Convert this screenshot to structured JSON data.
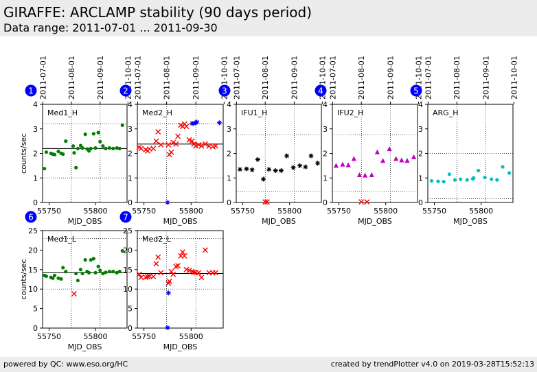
{
  "header": {
    "title": "GIRAFFE: ARCLAMP stability (90 days period)",
    "subtitle": "Data range: 2011-07-01 ... 2011-09-30"
  },
  "footer": {
    "left": "powered by QC: www.eso.org/HC",
    "right": "created by trendPlotter v4.0 on 2019-03-28T15:52:13"
  },
  "colors": {
    "green": "#007f00",
    "red": "#ff0000",
    "blue": "#0000ff",
    "black": "#000000",
    "magenta": "#bf00bf",
    "cyan": "#00bfbf",
    "badge": "#0000ff"
  },
  "chart_data": [
    {
      "type": "scatter",
      "badge": "1",
      "label": "Med1_H",
      "xlabel": "MJD_OBS",
      "ylabel": "counts/sec",
      "xlim": [
        55743,
        55834
      ],
      "ylim": [
        0,
        4
      ],
      "yticks": [
        0,
        1,
        2,
        3,
        4
      ],
      "xticks": [
        55750,
        55800
      ],
      "top_dates": [
        "2011-07-01",
        "2011-08-01",
        "2011-09-01",
        "2011-10-01"
      ],
      "hline": 2.2,
      "dotted_x": [
        55774,
        55805
      ],
      "dotted_y": [
        1,
        3.2
      ],
      "series": [
        {
          "color": "green",
          "marker": "dot",
          "x": [
            55745,
            55747,
            55752,
            55754,
            55756,
            55760,
            55763,
            55765,
            55768,
            55776,
            55777,
            55779,
            55781,
            55784,
            55786,
            55789,
            55791,
            55793,
            55795,
            55798,
            55800,
            55803,
            55805,
            55808,
            55811,
            55815,
            55819,
            55823,
            55826,
            55829
          ],
          "y": [
            1.38,
            2.05,
            2.0,
            1.97,
            1.95,
            2.08,
            2.0,
            1.97,
            2.5,
            2.3,
            2.02,
            1.42,
            2.2,
            2.32,
            2.22,
            2.78,
            2.18,
            2.1,
            2.2,
            2.8,
            2.22,
            2.85,
            2.48,
            2.3,
            2.2,
            2.22,
            2.2,
            2.22,
            2.2,
            3.15
          ]
        }
      ]
    },
    {
      "type": "scatter",
      "badge": "2",
      "label": "Med2_H",
      "xlabel": "MJD_OBS",
      "ylabel": "",
      "xlim": [
        55743,
        55834
      ],
      "ylim": [
        0,
        4
      ],
      "yticks": [
        0,
        1,
        2,
        3,
        4
      ],
      "xticks": [
        55750,
        55800
      ],
      "top_dates": [
        "2011-07-01",
        "2011-08-01",
        "2011-09-01",
        "2011-10-01"
      ],
      "hline": 2.38,
      "dotted_x": [
        55774,
        55805
      ],
      "dotted_y": [
        1,
        3.2
      ],
      "series": [
        {
          "color": "red",
          "marker": "x",
          "x": [
            55745,
            55747,
            55752,
            55754,
            55756,
            55760,
            55763,
            55765,
            55768,
            55776,
            55777,
            55779,
            55781,
            55784,
            55786,
            55789,
            55791,
            55793,
            55795,
            55798,
            55801,
            55803,
            55805,
            55808,
            55811,
            55815,
            55819,
            55823,
            55826
          ],
          "y": [
            2.25,
            2.2,
            2.15,
            2.1,
            2.18,
            2.2,
            2.5,
            2.88,
            2.35,
            2.35,
            1.95,
            2.05,
            2.45,
            2.38,
            2.7,
            3.15,
            3.1,
            3.2,
            3.1,
            2.55,
            2.5,
            2.38,
            2.3,
            2.35,
            2.3,
            2.38,
            2.3,
            2.28,
            2.3
          ]
        },
        {
          "color": "blue",
          "marker": "star",
          "x": [
            55775,
            55801,
            55803,
            55805,
            55806,
            55830
          ],
          "y": [
            0.0,
            3.22,
            3.22,
            3.25,
            3.28,
            3.25
          ]
        }
      ]
    },
    {
      "type": "scatter",
      "badge": "3",
      "label": "IFU1_H",
      "xlabel": "MJD_OBS",
      "ylabel": "",
      "xlim": [
        55743,
        55834
      ],
      "ylim": [
        0,
        4
      ],
      "yticks": [
        0,
        1,
        2,
        3,
        4
      ],
      "xticks": [
        55750,
        55800
      ],
      "top_dates": [
        "2011-07-01",
        "2011-08-01",
        "2011-09-01",
        "2011-10-01"
      ],
      "hline": null,
      "dotted_x": [
        55774,
        55805
      ],
      "dotted_y": [
        0.45,
        2.75
      ],
      "series": [
        {
          "color": "black",
          "marker": "star",
          "x": [
            55747,
            55754,
            55760,
            55766,
            55772,
            55778,
            55785,
            55791,
            55797,
            55804,
            55811,
            55817,
            55823,
            55830
          ],
          "y": [
            1.35,
            1.37,
            1.33,
            1.75,
            0.95,
            1.35,
            1.3,
            1.3,
            1.9,
            1.42,
            1.5,
            1.45,
            1.9,
            1.6
          ]
        },
        {
          "color": "red",
          "marker": "x",
          "x": [
            55774,
            55776
          ],
          "y": [
            0.02,
            0.02
          ]
        }
      ]
    },
    {
      "type": "scatter",
      "badge": "4",
      "label": "IFU2_H",
      "xlabel": "MJD_OBS",
      "ylabel": "",
      "xlim": [
        55743,
        55834
      ],
      "ylim": [
        0,
        4
      ],
      "yticks": [
        0,
        1,
        2,
        3,
        4
      ],
      "xticks": [
        55750,
        55800
      ],
      "top_dates": [
        "2011-07-01",
        "2011-08-01",
        "2011-09-01",
        "2011-10-01"
      ],
      "hline": null,
      "dotted_x": [
        55774,
        55805
      ],
      "dotted_y": [
        0.45,
        2.75
      ],
      "series": [
        {
          "color": "magenta",
          "marker": "triangle",
          "x": [
            55747,
            55754,
            55760,
            55766,
            55772,
            55778,
            55785,
            55791,
            55797,
            55804,
            55811,
            55817,
            55823,
            55830
          ],
          "y": [
            1.5,
            1.55,
            1.52,
            1.78,
            1.12,
            1.1,
            1.12,
            2.05,
            1.7,
            2.18,
            1.78,
            1.72,
            1.7,
            1.85
          ]
        },
        {
          "color": "red",
          "marker": "x",
          "x": [
            55774,
            55780
          ],
          "y": [
            0.02,
            0.02
          ]
        }
      ]
    },
    {
      "type": "scatter",
      "badge": "5",
      "label": "ARG_H",
      "xlabel": "MJD_OBS",
      "ylabel": "",
      "xlim": [
        55743,
        55834
      ],
      "ylim": [
        0,
        4
      ],
      "yticks": [
        0,
        1,
        2,
        3,
        4
      ],
      "xticks": [
        55750,
        55800
      ],
      "top_dates": [
        "2011-07-01",
        "2011-08-01",
        "2011-09-01",
        "2011-10-01"
      ],
      "hline": null,
      "dotted_x": [
        55774,
        55805
      ],
      "dotted_y": [
        0.15,
        2.0
      ],
      "series": [
        {
          "color": "cyan",
          "marker": "dot",
          "x": [
            55747,
            55754,
            55760,
            55766,
            55772,
            55778,
            55785,
            55791,
            55792,
            55797,
            55804,
            55811,
            55817,
            55823,
            55830
          ],
          "y": [
            0.88,
            0.86,
            0.85,
            1.15,
            0.92,
            0.95,
            0.92,
            0.96,
            1.0,
            1.3,
            1.02,
            0.95,
            0.92,
            1.45,
            1.2
          ]
        }
      ]
    },
    {
      "type": "scatter",
      "badge": "6",
      "label": "Med1_L",
      "xlabel": "MJD_OBS",
      "ylabel": "counts/sec",
      "xlim": [
        55743,
        55834
      ],
      "ylim": [
        0,
        25
      ],
      "yticks": [
        0,
        5,
        10,
        15,
        20,
        25
      ],
      "xticks": [
        55750,
        55800
      ],
      "top_dates": [],
      "hline": 14.2,
      "dotted_x": [
        55774,
        55805
      ],
      "dotted_y": [
        10,
        23
      ],
      "series": [
        {
          "color": "green",
          "marker": "dot",
          "x": [
            55745,
            55747,
            55752,
            55754,
            55756,
            55760,
            55763,
            55765,
            55768,
            55779,
            55781,
            55784,
            55786,
            55789,
            55791,
            55793,
            55795,
            55798,
            55800,
            55803,
            55805,
            55808,
            55811,
            55815,
            55819,
            55823,
            55826,
            55829
          ],
          "y": [
            13.5,
            13.3,
            13.0,
            12.8,
            13.5,
            12.8,
            12.6,
            15.5,
            14.5,
            14.0,
            12.2,
            15.0,
            14.0,
            17.5,
            14.5,
            14.2,
            17.5,
            17.8,
            14.2,
            15.8,
            14.8,
            14.0,
            14.3,
            14.5,
            14.5,
            14.2,
            14.5,
            19.8
          ]
        },
        {
          "color": "red",
          "marker": "x",
          "x": [
            55777
          ],
          "y": [
            8.8
          ]
        }
      ]
    },
    {
      "type": "scatter",
      "badge": "7",
      "label": "Med2_L",
      "xlabel": "MJD_OBS",
      "ylabel": "",
      "xlim": [
        55743,
        55834
      ],
      "ylim": [
        0,
        25
      ],
      "yticks": [
        0,
        5,
        10,
        15,
        20,
        25
      ],
      "xticks": [
        55750,
        55800
      ],
      "top_dates": [],
      "hline": 14.0,
      "dotted_x": [
        55774,
        55805
      ],
      "dotted_y": [
        10,
        23
      ],
      "series": [
        {
          "color": "red",
          "marker": "x",
          "x": [
            55745,
            55747,
            55752,
            55754,
            55756,
            55760,
            55763,
            55765,
            55768,
            55776,
            55777,
            55779,
            55781,
            55784,
            55786,
            55789,
            55791,
            55793,
            55795,
            55798,
            55801,
            55803,
            55805,
            55808,
            55811,
            55815,
            55819,
            55823,
            55826
          ],
          "y": [
            13.8,
            13.0,
            13.0,
            13.2,
            13.3,
            13.2,
            16.5,
            18.2,
            14.2,
            11.5,
            12.0,
            14.5,
            13.8,
            15.8,
            16.0,
            18.5,
            19.5,
            18.5,
            15.0,
            14.8,
            14.5,
            14.3,
            14.2,
            14.2,
            13.0,
            20.0,
            14.2,
            14.2,
            14.2
          ]
        },
        {
          "color": "blue",
          "marker": "star",
          "x": [
            55775,
            55776
          ],
          "y": [
            0.1,
            9.0
          ]
        }
      ]
    }
  ]
}
